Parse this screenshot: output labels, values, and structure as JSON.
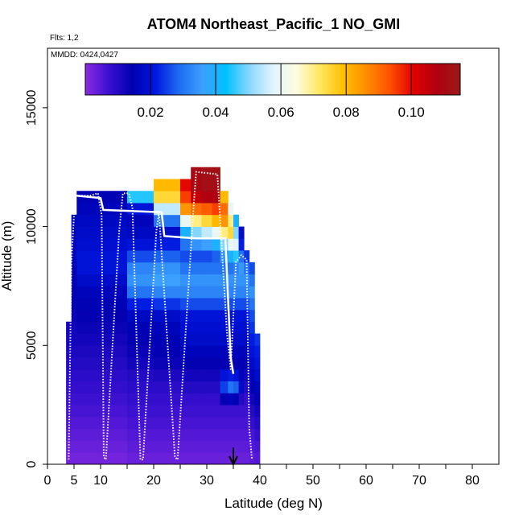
{
  "chart_data": {
    "type": "heatmap",
    "title": "ATOM4 Northeast_Pacific_1 NO_GMI",
    "flights_label": "Flts: 1,2",
    "date_label": "MMDD: 0424,0427",
    "xlabel": "Latitude (deg N)",
    "ylabel": "Altitude (m)",
    "xlim": [
      0,
      85
    ],
    "ylim": [
      0,
      17500
    ],
    "x_ticks": [
      0,
      5,
      10,
      20,
      30,
      40,
      50,
      60,
      70,
      80
    ],
    "x_tick_labels": [
      "0",
      "5",
      "10",
      "20",
      "30",
      "40",
      "50",
      "60",
      "70",
      "80"
    ],
    "y_ticks": [
      0,
      5000,
      10000,
      15000
    ],
    "y_tick_labels": [
      "0",
      "5000",
      "10000",
      "15000"
    ],
    "colorbar": {
      "range": [
        0,
        0.115
      ],
      "ticks": [
        0.02,
        0.04,
        0.06,
        0.08,
        0.1
      ],
      "tick_labels": [
        "0.02",
        "0.04",
        "0.06",
        "0.08",
        "0.10"
      ],
      "colors": [
        "#8a2be2",
        "#3a10d0",
        "#0000b0",
        "#0018e0",
        "#1e6cf0",
        "#3ca0ff",
        "#00c0ff",
        "#8ad8ff",
        "#e0f4ff",
        "#fffce0",
        "#ffe860",
        "#ffc000",
        "#ff8c00",
        "#ff5000",
        "#e00000",
        "#b00010",
        "#9a1a1a"
      ]
    },
    "grid_cell": {
      "lat_width": 1.0,
      "alt_height": 500
    },
    "columns": [
      {
        "lat_start": 3.5,
        "lat_end": 4.5,
        "alt_top": 6000,
        "profile": [
          0.002,
          0.003,
          0.004,
          0.005,
          0.006,
          0.007,
          0.008,
          0.009,
          0.01,
          0.011,
          0.012,
          0.012
        ]
      },
      {
        "lat_start": 4.5,
        "lat_end": 5.5,
        "alt_top": 10500,
        "profile": [
          0.002,
          0.003,
          0.004,
          0.005,
          0.006,
          0.007,
          0.008,
          0.009,
          0.01,
          0.011,
          0.012,
          0.012,
          0.013,
          0.014,
          0.014,
          0.015,
          0.015,
          0.016,
          0.016,
          0.016,
          0.016
        ]
      },
      {
        "lat_start": 5.5,
        "lat_end": 15,
        "alt_top": 11500,
        "profile": [
          0.002,
          0.003,
          0.004,
          0.005,
          0.006,
          0.007,
          0.008,
          0.009,
          0.01,
          0.011,
          0.012,
          0.013,
          0.014,
          0.015,
          0.016,
          0.018,
          0.02,
          0.02,
          0.019,
          0.018,
          0.017,
          0.016,
          0.015
        ]
      },
      {
        "lat_start": 15,
        "lat_end": 20,
        "alt_top": 11500,
        "profile": [
          0.003,
          0.004,
          0.005,
          0.006,
          0.007,
          0.008,
          0.009,
          0.01,
          0.012,
          0.013,
          0.014,
          0.015,
          0.017,
          0.022,
          0.03,
          0.034,
          0.032,
          0.026,
          0.02,
          0.017,
          0.016,
          0.02,
          0.045
        ]
      },
      {
        "lat_start": 20,
        "lat_end": 25,
        "alt_top": 12000,
        "profile": [
          0.003,
          0.004,
          0.005,
          0.006,
          0.007,
          0.008,
          0.009,
          0.011,
          0.013,
          0.014,
          0.015,
          0.016,
          0.018,
          0.024,
          0.032,
          0.036,
          0.034,
          0.028,
          0.022,
          0.018,
          0.03,
          0.055,
          0.075,
          0.08
        ]
      },
      {
        "lat_start": 25,
        "lat_end": 27,
        "alt_top": 12000,
        "profile": [
          0.003,
          0.004,
          0.005,
          0.006,
          0.007,
          0.008,
          0.01,
          0.012,
          0.014,
          0.016,
          0.018,
          0.019,
          0.02,
          0.026,
          0.032,
          0.034,
          0.03,
          0.026,
          0.03,
          0.04,
          0.06,
          0.085,
          0.095,
          0.1
        ]
      },
      {
        "lat_start": 27,
        "lat_end": 29,
        "alt_top": 12500,
        "profile": [
          0.003,
          0.004,
          0.005,
          0.006,
          0.007,
          0.008,
          0.01,
          0.012,
          0.014,
          0.016,
          0.018,
          0.019,
          0.02,
          0.026,
          0.032,
          0.034,
          0.03,
          0.026,
          0.034,
          0.05,
          0.07,
          0.09,
          0.105,
          0.11,
          0.11
        ]
      },
      {
        "lat_start": 29,
        "lat_end": 31,
        "alt_top": 12500,
        "profile": [
          0.003,
          0.004,
          0.005,
          0.006,
          0.007,
          0.008,
          0.01,
          0.012,
          0.014,
          0.016,
          0.018,
          0.019,
          0.02,
          0.026,
          0.032,
          0.034,
          0.03,
          0.026,
          0.036,
          0.055,
          0.075,
          0.092,
          0.108,
          0.112,
          0.112
        ]
      },
      {
        "lat_start": 31,
        "lat_end": 32.5,
        "alt_top": 12500,
        "profile": [
          0.003,
          0.004,
          0.005,
          0.006,
          0.007,
          0.008,
          0.01,
          0.012,
          0.014,
          0.016,
          0.018,
          0.019,
          0.02,
          0.026,
          0.032,
          0.034,
          0.03,
          0.028,
          0.04,
          0.06,
          0.08,
          0.095,
          0.108,
          0.112,
          0.112
        ]
      },
      {
        "lat_start": 32.5,
        "lat_end": 34,
        "alt_top": 11500,
        "profile": [
          0.003,
          0.004,
          0.005,
          0.006,
          0.007,
          0.014,
          0.025,
          0.02,
          0.014,
          0.016,
          0.018,
          0.019,
          0.02,
          0.026,
          0.032,
          0.034,
          0.03,
          0.034,
          0.05,
          0.07,
          0.085,
          0.09,
          0.08
        ]
      },
      {
        "lat_start": 34,
        "lat_end": 35,
        "alt_top": 11000,
        "profile": [
          0.003,
          0.004,
          0.005,
          0.006,
          0.007,
          0.016,
          0.03,
          0.022,
          0.014,
          0.016,
          0.018,
          0.019,
          0.02,
          0.026,
          0.032,
          0.034,
          0.03,
          0.04,
          0.06,
          0.075,
          0.07,
          0.06
        ]
      },
      {
        "lat_start": 35,
        "lat_end": 36,
        "alt_top": 10500,
        "profile": [
          0.003,
          0.004,
          0.005,
          0.006,
          0.007,
          0.015,
          0.028,
          0.02,
          0.014,
          0.016,
          0.018,
          0.019,
          0.02,
          0.026,
          0.032,
          0.034,
          0.032,
          0.045,
          0.058,
          0.05,
          0.04
        ]
      },
      {
        "lat_start": 36,
        "lat_end": 37,
        "alt_top": 10000,
        "profile": [
          0.003,
          0.004,
          0.005,
          0.006,
          0.007,
          0.01,
          0.018,
          0.016,
          0.014,
          0.016,
          0.018,
          0.019,
          0.02,
          0.026,
          0.032,
          0.034,
          0.035,
          0.03,
          0.022,
          0.018
        ]
      },
      {
        "lat_start": 37,
        "lat_end": 38,
        "alt_top": 9000,
        "profile": [
          0.003,
          0.004,
          0.005,
          0.006,
          0.007,
          0.008,
          0.01,
          0.012,
          0.014,
          0.016,
          0.018,
          0.019,
          0.02,
          0.026,
          0.032,
          0.034,
          0.03,
          0.024
        ]
      },
      {
        "lat_start": 38,
        "lat_end": 39,
        "alt_top": 8500,
        "profile": [
          0.004,
          0.005,
          0.006,
          0.008,
          0.01,
          0.012,
          0.014,
          0.016,
          0.018,
          0.02,
          0.022,
          0.024,
          0.026,
          0.03,
          0.034,
          0.03,
          0.026
        ]
      },
      {
        "lat_start": 39,
        "lat_end": 40,
        "alt_top": 5500,
        "profile": [
          0.005,
          0.006,
          0.008,
          0.01,
          0.012,
          0.014,
          0.016,
          0.018,
          0.02,
          0.022,
          0.024
        ]
      }
    ],
    "flight_track": [
      {
        "lat": 4.0,
        "alt": 200
      },
      {
        "lat": 4.5,
        "alt": 8500
      },
      {
        "lat": 5.2,
        "alt": 11300
      },
      {
        "lat": 8.0,
        "alt": 11300
      },
      {
        "lat": 9.5,
        "alt": 11400
      },
      {
        "lat": 10.2,
        "alt": 10500
      },
      {
        "lat": 10.6,
        "alt": 300
      },
      {
        "lat": 11.0,
        "alt": 200
      },
      {
        "lat": 13.5,
        "alt": 9800
      },
      {
        "lat": 14.2,
        "alt": 11400
      },
      {
        "lat": 15.3,
        "alt": 11400
      },
      {
        "lat": 16.0,
        "alt": 10800
      },
      {
        "lat": 17.5,
        "alt": 200
      },
      {
        "lat": 18.0,
        "alt": 200
      },
      {
        "lat": 20.5,
        "alt": 9800
      },
      {
        "lat": 21.0,
        "alt": 10600
      },
      {
        "lat": 24.0,
        "alt": 300
      },
      {
        "lat": 24.5,
        "alt": 200
      },
      {
        "lat": 27.5,
        "alt": 10800
      },
      {
        "lat": 28.0,
        "alt": 12300
      },
      {
        "lat": 32.0,
        "alt": 12200
      },
      {
        "lat": 33.8,
        "alt": 5500
      },
      {
        "lat": 34.5,
        "alt": 4000
      },
      {
        "lat": 35.5,
        "alt": 8500
      },
      {
        "lat": 36.5,
        "alt": 8800
      },
      {
        "lat": 37.5,
        "alt": 8600
      },
      {
        "lat": 38.0,
        "alt": 1500
      },
      {
        "lat": 38.5,
        "alt": 200
      }
    ],
    "flight_track_2": [
      {
        "lat": 5.5,
        "alt": 11300
      },
      {
        "lat": 10.0,
        "alt": 11200
      },
      {
        "lat": 10.5,
        "alt": 10700
      },
      {
        "lat": 21.5,
        "alt": 10600
      },
      {
        "lat": 22.0,
        "alt": 9600
      },
      {
        "lat": 28.0,
        "alt": 9500
      },
      {
        "lat": 33.5,
        "alt": 9500
      },
      {
        "lat": 34.5,
        "alt": 4500
      },
      {
        "lat": 35.0,
        "alt": 3800
      }
    ],
    "arrow_marker": {
      "lat": 35,
      "alt_from": 700,
      "alt_to": 0
    }
  }
}
